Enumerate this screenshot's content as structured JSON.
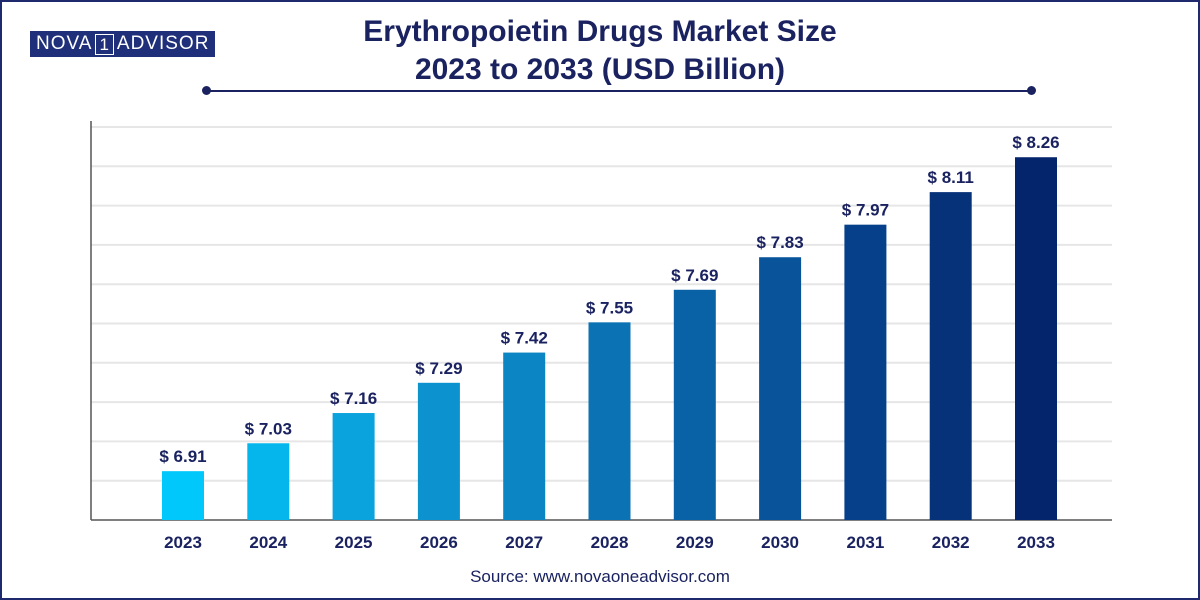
{
  "brand": {
    "left": "NOVA",
    "one": "1",
    "right": "ADVISOR"
  },
  "title_line1": "Erythropoietin Drugs Market Size",
  "title_line2": "2023 to 2033 (USD Billion)",
  "source": "Source: www.novaoneadvisor.com",
  "colors": {
    "title": "#1a2260",
    "bars": [
      "#00c8fa",
      "#05b6ec",
      "#0aa3dd",
      "#0b92cf",
      "#0c85c4",
      "#0b72b3",
      "#0a62a6",
      "#09539a",
      "#07408a",
      "#06327a",
      "#04256c"
    ],
    "grid": "#e6e6e6",
    "axis": "#555555"
  },
  "chart_data": {
    "type": "bar",
    "title": "Erythropoietin Drugs Market Size 2023 to 2033 (USD Billion)",
    "categories": [
      "2023",
      "2024",
      "2025",
      "2026",
      "2027",
      "2028",
      "2029",
      "2030",
      "2031",
      "2032",
      "2033"
    ],
    "values": [
      6.91,
      7.03,
      7.16,
      7.29,
      7.42,
      7.55,
      7.69,
      7.83,
      7.97,
      8.11,
      8.26
    ],
    "data_labels": [
      "$ 6.91",
      "$ 7.03",
      "$ 7.16",
      "$ 7.29",
      "$ 7.42",
      "$ 7.55",
      "$ 7.69",
      "$ 7.83",
      "$ 7.97",
      "$ 8.11",
      "$ 8.26"
    ],
    "ylim": [
      6.7,
      8.39
    ],
    "xlabel": "",
    "ylabel": "",
    "grid": true,
    "legend": "none"
  }
}
